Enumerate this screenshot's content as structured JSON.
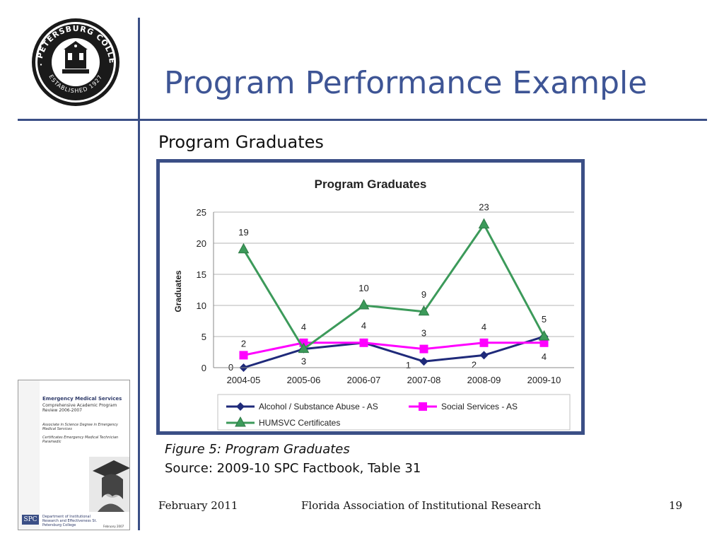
{
  "slide": {
    "title": "Program Performance Example",
    "subtitle": "Program Graduates",
    "caption": "Figure 5: Program Graduates",
    "source": "Source: 2009-10 SPC Factbook, Table 31",
    "footer_date": "February 2011",
    "footer_org": "Florida Association of Institutional Research",
    "footer_page": "19",
    "accent_color": "#3e5595",
    "rule_color": "#3b4f86"
  },
  "logo": {
    "text_top": "ST. PETERSBURG COLLEGE",
    "text_bottom": "ESTABLISHED 1927",
    "icon": "college-seal-icon"
  },
  "thumbnail": {
    "heading": "Emergency Medical Services",
    "subheading": "Comprehensive Academic Program Review 2006-2007",
    "degree": "Associate in Science Degree in Emergency Medical Services",
    "certificates": "Certificates Emergency Medical Technician Paramedic",
    "org": "Department of Institutional Research and Effectiveness St. Petersburg College",
    "date": "February 2007",
    "logo_text": "SPC"
  },
  "chart_data": {
    "type": "line",
    "title": "Program Graduates",
    "xlabel": "",
    "ylabel": "Graduates",
    "categories": [
      "2004-05",
      "2005-06",
      "2006-07",
      "2007-08",
      "2008-09",
      "2009-10"
    ],
    "ylim": [
      0,
      25
    ],
    "yticks": [
      "0",
      "5",
      "10",
      "15",
      "20",
      "25"
    ],
    "grid": true,
    "legend": "bottom",
    "series": [
      {
        "name": "Alcohol / Substance Abuse - AS",
        "values": [
          0,
          3,
          4,
          1,
          2,
          5
        ],
        "labels": [
          "0",
          "3",
          "4",
          "1",
          "2",
          "5"
        ],
        "color": "#1f2a7a",
        "marker": "diamond"
      },
      {
        "name": "Social Services - AS",
        "values": [
          2,
          4,
          4,
          3,
          4,
          4
        ],
        "labels": [
          "2",
          "4",
          "4",
          "3",
          "4",
          "4"
        ],
        "color": "#ff00ff",
        "marker": "square"
      },
      {
        "name": "HUMSVC Certificates",
        "values": [
          19,
          3,
          10,
          9,
          23,
          5
        ],
        "labels": [
          "19",
          "",
          "10",
          "9",
          "23",
          ""
        ],
        "color": "#3c9a5a",
        "marker": "triangle"
      }
    ]
  }
}
